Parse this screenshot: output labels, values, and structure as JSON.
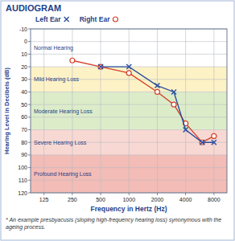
{
  "chart_data": {
    "type": "line",
    "title": "AUDIOGRAM",
    "x_label": "Frequency in Hertz (Hz)",
    "y_label": "Hearing Level in Decibels (dB)",
    "x": [
      250,
      500,
      1000,
      2000,
      3000,
      4000,
      6000,
      8000
    ],
    "series": [
      {
        "name": "Left Ear",
        "color": "#2b4f9e",
        "marker": "x",
        "values": [
          null,
          20,
          20,
          35,
          40,
          70,
          80,
          80
        ]
      },
      {
        "name": "Right Ear",
        "color": "#d6412b",
        "marker": "circle",
        "values": [
          15,
          20,
          25,
          40,
          50,
          65,
          80,
          75
        ]
      }
    ],
    "xlim": [
      90,
      11000
    ],
    "xticks": [
      125,
      250,
      500,
      1000,
      2000,
      4000,
      8000
    ],
    "ylim": [
      -10,
      120
    ],
    "yticks": [
      -10,
      0,
      10,
      20,
      30,
      40,
      50,
      60,
      70,
      80,
      90,
      100,
      110,
      120
    ],
    "log": "x",
    "grid": true,
    "legend": "top",
    "annotations": [
      {
        "text": "Normal Hearing",
        "y0": -10,
        "y1": 20,
        "color": "#ffffff"
      },
      {
        "text": "Mild Hearing Loss",
        "y0": 20,
        "y1": 40,
        "color": "#fcf2c6"
      },
      {
        "text": "Moderate Hearing Loss",
        "y0": 40,
        "y1": 70,
        "color": "#dcecc9"
      },
      {
        "text": "Severe Hearing Loss",
        "y0": 70,
        "y1": 90,
        "color": "#f8d8d2"
      },
      {
        "text": "Profound Hearing Loss",
        "y0": 90,
        "y1": 120,
        "color": "#f3bcb6"
      }
    ],
    "footnote": "* An example presbyacusis (sloping high-frequency hearing loss) synonymous with the ageing process."
  }
}
